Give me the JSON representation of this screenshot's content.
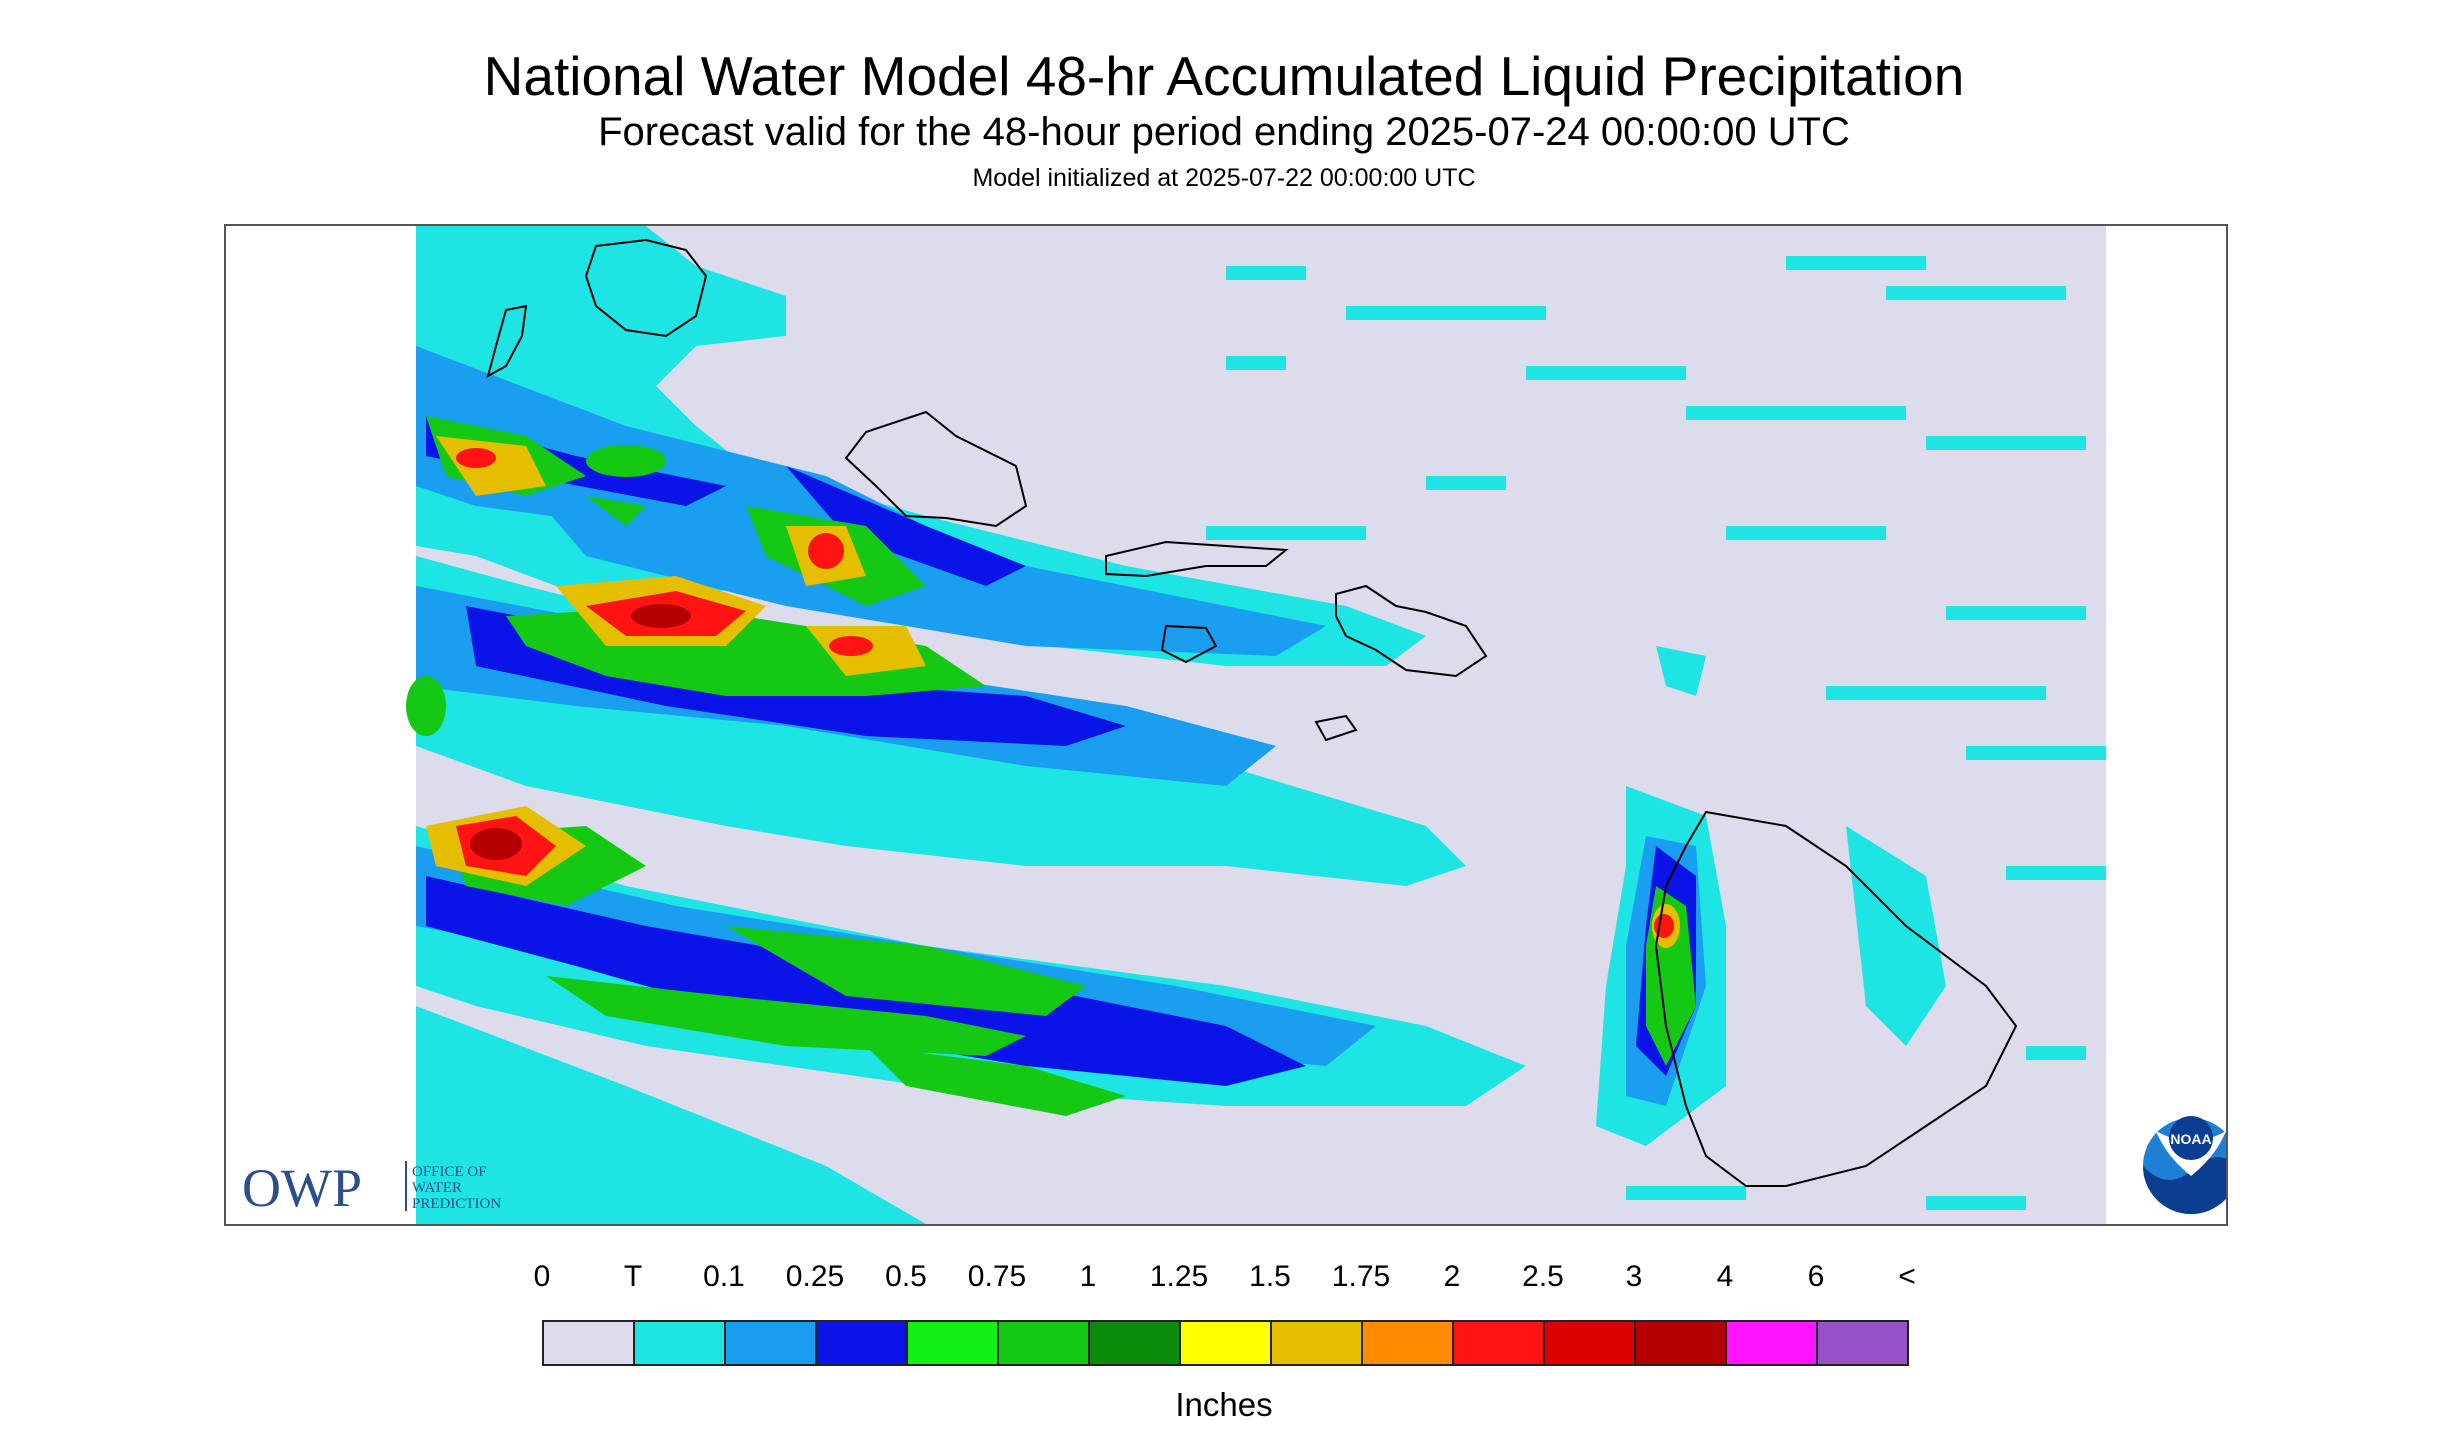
{
  "title": "National Water Model 48-hr Accumulated Liquid Precipitation",
  "subtitle": "Forecast valid for the 48-hour period ending 2025-07-24 00:00:00 UTC",
  "init": "Model initialized at 2025-07-22 00:00:00 UTC",
  "logo_owp": {
    "abbr": "OWP",
    "line1": "OFFICE OF",
    "line2": "WATER",
    "line3": "PREDICTION"
  },
  "logo_noaa": "NOAA",
  "legend": {
    "labels": [
      "0",
      "T",
      "0.1",
      "0.25",
      "0.5",
      "0.75",
      "1",
      "1.25",
      "1.5",
      "1.75",
      "2",
      "2.5",
      "3",
      "4",
      "6",
      "<"
    ],
    "colors": [
      "#dcdcec",
      "#1ee4e4",
      "#1a9ef0",
      "#0a14e6",
      "#14f014",
      "#14c814",
      "#0a8c0a",
      "#ffff00",
      "#e6be00",
      "#ff8c00",
      "#ff1414",
      "#dc0000",
      "#b40000",
      "#ff14ff",
      "#9650c8"
    ],
    "units": "Inches"
  },
  "map": {
    "background_color": "#dcdcec",
    "island_outline_color": "#000000",
    "islands": [
      "Kauai",
      "Niihau",
      "Oahu",
      "Molokai",
      "Lanai",
      "Maui",
      "Kahoolawe",
      "Hawaii"
    ]
  }
}
